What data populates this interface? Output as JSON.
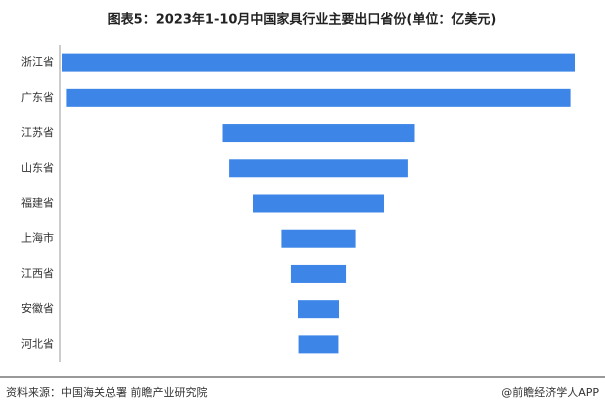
{
  "chart_data": {
    "type": "funnel",
    "title": "图表5：2023年1-10月中国家具行业主要出口省份(单位：亿美元)",
    "categories": [
      "浙江省",
      "广东省",
      "江苏省",
      "山东省",
      "福建省",
      "上海市",
      "江西省",
      "安徽省",
      "河北省"
    ],
    "values": [
      175,
      172,
      65.5,
      61,
      44.7,
      25.3,
      18.8,
      14,
      13.6
    ],
    "color": "#3d86e8",
    "source": "资料来源：中国海关总署 前瞻产业研究院",
    "credit": "@前瞻经济学人APP"
  }
}
